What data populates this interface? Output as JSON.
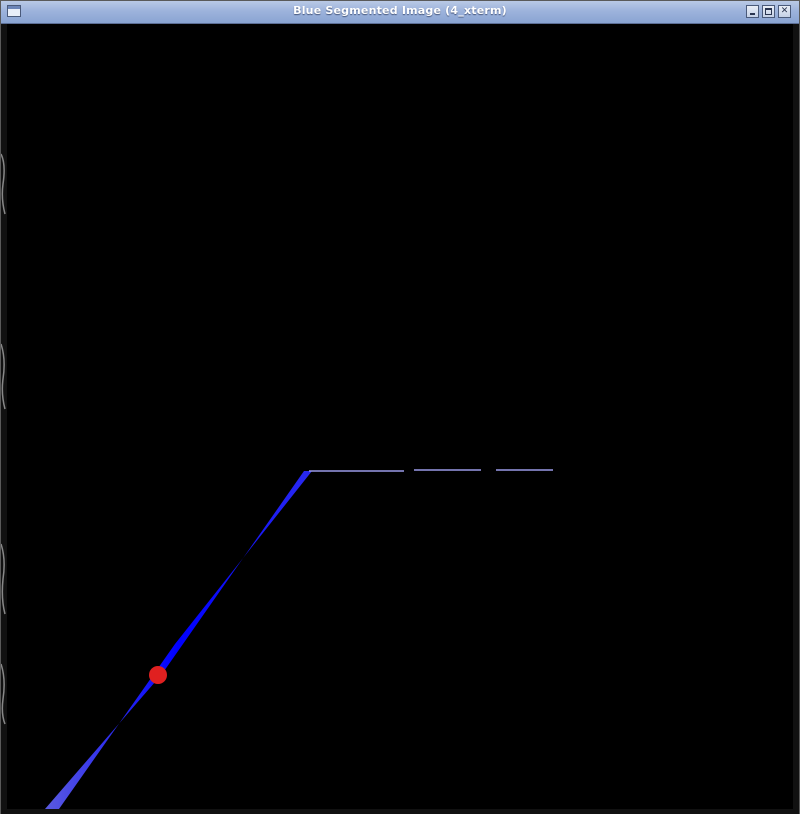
{
  "window": {
    "title": "Blue Segmented Image (4_xterm)",
    "buttons": {
      "minimize": "minimize",
      "maximize": "maximize",
      "close": "close"
    }
  },
  "colors": {
    "segment": "#0000ff",
    "marker": "#e02020",
    "background": "#000000",
    "titlebar": "#9db3dc"
  },
  "canvas": {
    "content": "blue segmented line with red marker point"
  }
}
